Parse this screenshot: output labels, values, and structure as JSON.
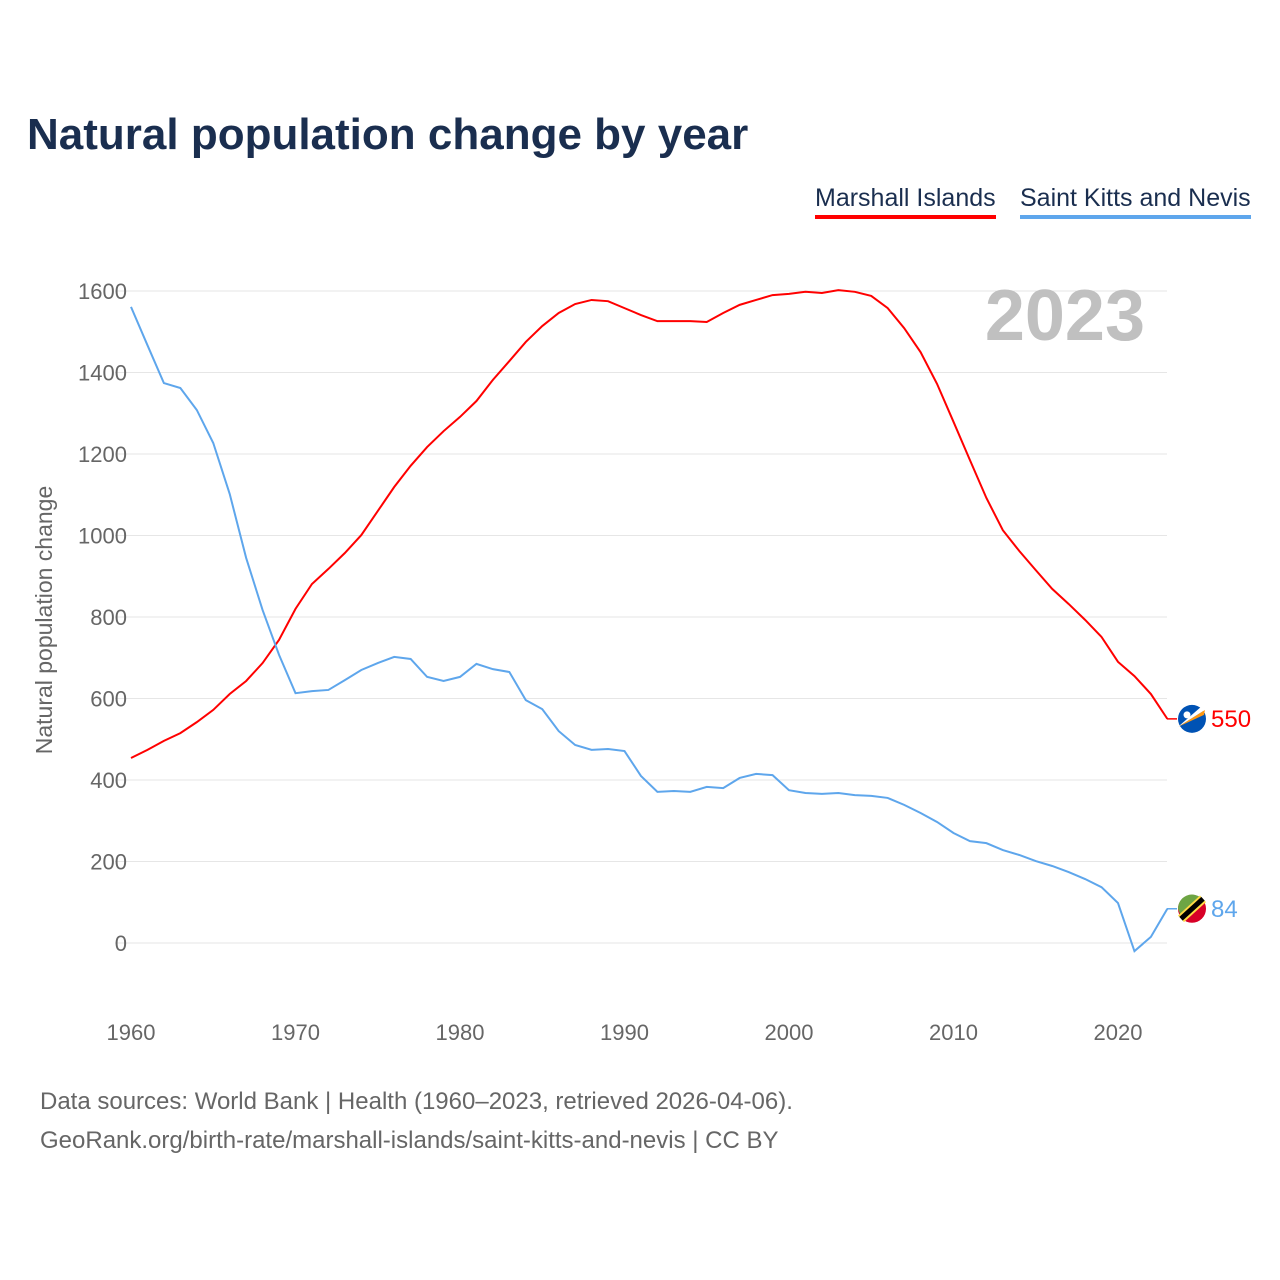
{
  "chart_data": {
    "type": "line",
    "title": "Natural population change by year",
    "xlabel": "",
    "ylabel": "Natural population change",
    "xlim": [
      1960,
      2023
    ],
    "ylim": [
      -100,
      1650
    ],
    "yticks": [
      0,
      200,
      400,
      600,
      800,
      1000,
      1200,
      1400,
      1600
    ],
    "xticks": [
      1960,
      1970,
      1980,
      1990,
      2000,
      2010,
      2020
    ],
    "grid": true,
    "legend_position": "top-right",
    "year_label": "2023",
    "x": [
      1960,
      1961,
      1962,
      1963,
      1964,
      1965,
      1966,
      1967,
      1968,
      1969,
      1970,
      1971,
      1972,
      1973,
      1974,
      1975,
      1976,
      1977,
      1978,
      1979,
      1980,
      1981,
      1982,
      1983,
      1984,
      1985,
      1986,
      1987,
      1988,
      1989,
      1990,
      1991,
      1992,
      1993,
      1994,
      1995,
      1996,
      1997,
      1998,
      1999,
      2000,
      2001,
      2002,
      2003,
      2004,
      2005,
      2006,
      2007,
      2008,
      2009,
      2010,
      2011,
      2012,
      2013,
      2014,
      2015,
      2016,
      2017,
      2018,
      2019,
      2020,
      2021,
      2022,
      2023
    ],
    "series": [
      {
        "name": "Marshall Islands",
        "color": "#ff0000",
        "end_label": "550",
        "flag": "marshall-islands-flag",
        "values": [
          454,
          474,
          496,
          515,
          542,
          572,
          611,
          643,
          687,
          744,
          820,
          881,
          918,
          957,
          1001,
          1060,
          1119,
          1171,
          1217,
          1256,
          1291,
          1330,
          1382,
          1428,
          1475,
          1514,
          1546,
          1568,
          1578,
          1575,
          1558,
          1541,
          1526,
          1526,
          1526,
          1524,
          1546,
          1566,
          1578,
          1590,
          1593,
          1598,
          1595,
          1602,
          1598,
          1588,
          1558,
          1509,
          1450,
          1372,
          1279,
          1185,
          1092,
          1013,
          962,
          915,
          869,
          832,
          793,
          751,
          690,
          655,
          611,
          550
        ]
      },
      {
        "name": "Saint Kitts and Nevis",
        "color": "#5ea6ec",
        "end_label": "84",
        "flag": "saint-kitts-and-nevis-flag",
        "values": [
          1561,
          1467,
          1374,
          1362,
          1308,
          1227,
          1102,
          945,
          817,
          707,
          613,
          618,
          621,
          645,
          670,
          687,
          702,
          697,
          653,
          643,
          653,
          685,
          672,
          665,
          596,
          574,
          520,
          486,
          474,
          476,
          471,
          410,
          371,
          373,
          371,
          383,
          380,
          405,
          415,
          412,
          375,
          368,
          366,
          368,
          363,
          361,
          356,
          339,
          319,
          297,
          270,
          250,
          245,
          228,
          216,
          201,
          189,
          174,
          157,
          137,
          98,
          -20,
          15,
          84
        ]
      }
    ]
  },
  "footer": {
    "line1": "Data sources: World Bank | Health (1960–2023, retrieved 2026-04-06).",
    "line2": "GeoRank.org/birth-rate/marshall-islands/saint-kitts-and-nevis | CC BY"
  }
}
